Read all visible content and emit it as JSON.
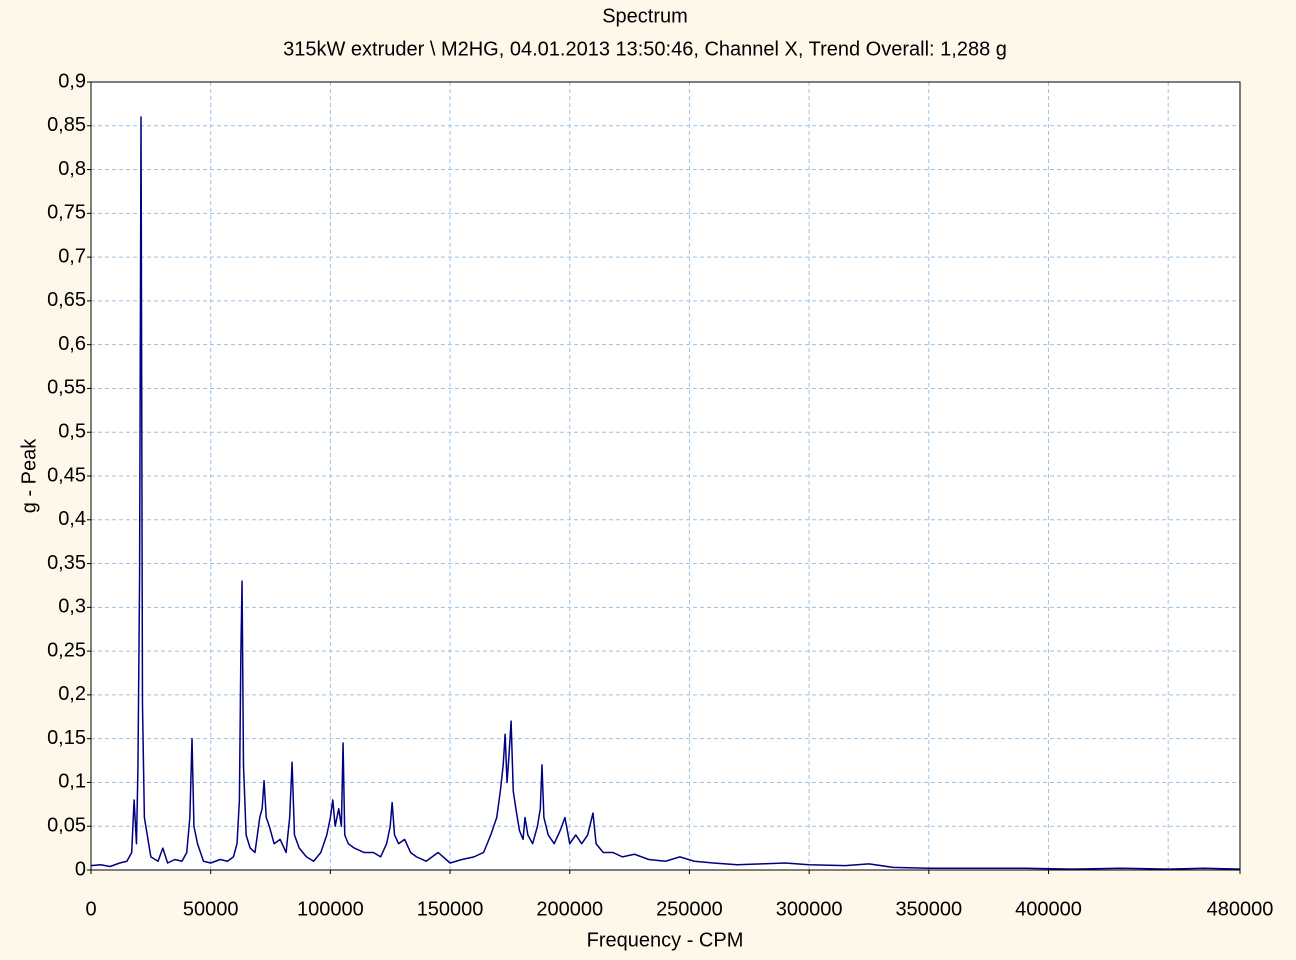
{
  "chart_data": {
    "type": "line",
    "title": "Spectrum",
    "subtitle": "315kW extruder \\ M2HG, 04.01.2013 13:50:46, Channel X, Trend Overall: 1,288 g",
    "x_label": "Frequency - CPM",
    "y_label": "g - Peak",
    "color": "#000080",
    "grid": true,
    "xlim": [
      0,
      480000
    ],
    "ylim": [
      0,
      0.9
    ],
    "xticks": [
      0,
      50000,
      100000,
      150000,
      200000,
      250000,
      300000,
      350000,
      400000,
      480000
    ],
    "x_grid_lines": [
      50000,
      100000,
      150000,
      200000,
      250000,
      300000,
      350000,
      400000,
      450000
    ],
    "yticks": [
      0,
      {
        "value": 0.05,
        "label": "0,05"
      },
      {
        "value": 0.1,
        "label": "0,1"
      },
      {
        "value": 0.15,
        "label": "0,15"
      },
      {
        "value": 0.2,
        "label": "0,2"
      },
      {
        "value": 0.25,
        "label": "0,25"
      },
      {
        "value": 0.3,
        "label": "0,3"
      },
      {
        "value": 0.35,
        "label": "0,35"
      },
      {
        "value": 0.4,
        "label": "0,4"
      },
      {
        "value": 0.45,
        "label": "0,45"
      },
      {
        "value": 0.5,
        "label": "0,5"
      },
      {
        "value": 0.55,
        "label": "0,55"
      },
      {
        "value": 0.6,
        "label": "0,6"
      },
      {
        "value": 0.65,
        "label": "0,65"
      },
      {
        "value": 0.7,
        "label": "0,7"
      },
      {
        "value": 0.75,
        "label": "0,75"
      },
      {
        "value": 0.8,
        "label": "0,8"
      },
      {
        "value": 0.85,
        "label": "0,85"
      },
      {
        "value": 0.9,
        "label": "0,9"
      }
    ],
    "x": [
      0,
      4000,
      8000,
      12000,
      15000,
      17000,
      18000,
      19000,
      19600,
      20300,
      20900,
      21500,
      22300,
      23500,
      25000,
      28000,
      30000,
      32000,
      35000,
      38000,
      40000,
      41300,
      42200,
      43000,
      44500,
      47000,
      50000,
      54000,
      57000,
      59500,
      61000,
      62000,
      62600,
      63100,
      63700,
      64800,
      66500,
      68500,
      70500,
      71500,
      72300,
      73200,
      74500,
      76500,
      79000,
      81500,
      83000,
      84000,
      85000,
      87000,
      90000,
      93000,
      96000,
      98500,
      100000,
      101000,
      102000,
      103500,
      104600,
      105300,
      106000,
      107500,
      110000,
      114000,
      118000,
      121000,
      123500,
      125000,
      125800,
      126800,
      128500,
      131000,
      133500,
      136000,
      140000,
      145000,
      150000,
      155000,
      160000,
      164000,
      167000,
      169500,
      171000,
      172200,
      173000,
      173800,
      174600,
      175500,
      176400,
      177500,
      179000,
      180500,
      181300,
      182500,
      184500,
      186500,
      187700,
      188400,
      189200,
      191000,
      193500,
      196000,
      198000,
      200000,
      202500,
      205000,
      207500,
      209700,
      211000,
      214000,
      218000,
      222000,
      227000,
      233000,
      240000,
      246000,
      252000,
      260000,
      270000,
      280000,
      290000,
      300000,
      315000,
      325000,
      335000,
      350000,
      370000,
      390000,
      410000,
      430000,
      450000,
      465000,
      480000
    ],
    "values": [
      0.005,
      0.006,
      0.004,
      0.008,
      0.01,
      0.02,
      0.08,
      0.03,
      0.115,
      0.335,
      0.86,
      0.19,
      0.06,
      0.04,
      0.015,
      0.01,
      0.025,
      0.008,
      0.012,
      0.01,
      0.02,
      0.06,
      0.15,
      0.05,
      0.03,
      0.01,
      0.008,
      0.012,
      0.01,
      0.015,
      0.03,
      0.08,
      0.245,
      0.33,
      0.12,
      0.04,
      0.025,
      0.02,
      0.06,
      0.07,
      0.102,
      0.06,
      0.05,
      0.03,
      0.035,
      0.02,
      0.06,
      0.123,
      0.04,
      0.025,
      0.015,
      0.01,
      0.02,
      0.04,
      0.06,
      0.08,
      0.05,
      0.07,
      0.05,
      0.145,
      0.04,
      0.03,
      0.025,
      0.02,
      0.02,
      0.015,
      0.03,
      0.05,
      0.077,
      0.04,
      0.03,
      0.035,
      0.02,
      0.015,
      0.01,
      0.02,
      0.008,
      0.012,
      0.015,
      0.02,
      0.04,
      0.06,
      0.09,
      0.12,
      0.155,
      0.1,
      0.13,
      0.17,
      0.09,
      0.07,
      0.045,
      0.035,
      0.06,
      0.04,
      0.03,
      0.05,
      0.07,
      0.12,
      0.06,
      0.04,
      0.03,
      0.045,
      0.06,
      0.03,
      0.04,
      0.03,
      0.04,
      0.065,
      0.03,
      0.02,
      0.02,
      0.015,
      0.018,
      0.012,
      0.01,
      0.015,
      0.01,
      0.008,
      0.006,
      0.007,
      0.008,
      0.006,
      0.005,
      0.007,
      0.003,
      0.002,
      0.002,
      0.002,
      0.001,
      0.002,
      0.001,
      0.002,
      0.001
    ]
  }
}
